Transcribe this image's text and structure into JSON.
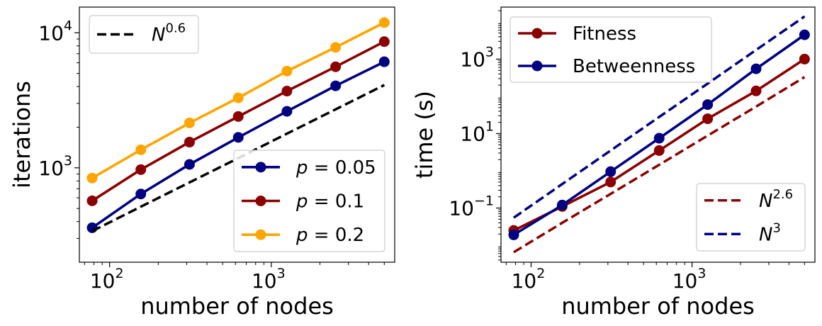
{
  "chart_data": [
    {
      "type": "line",
      "xscale": "log",
      "yscale": "log",
      "xlabel": "number of nodes",
      "ylabel": "iterations",
      "xlim": [
        65,
        5800
      ],
      "ylim": [
        200,
        15500
      ],
      "x_ticks": [
        {
          "value": 100,
          "base": "10",
          "exp": "2"
        },
        {
          "value": 1000,
          "base": "10",
          "exp": "3"
        }
      ],
      "y_ticks": [
        {
          "value": 1000,
          "base": "10",
          "exp": "3"
        },
        {
          "value": 10000,
          "base": "10",
          "exp": "4"
        }
      ],
      "x": [
        78,
        156,
        312,
        625,
        1250,
        2500,
        5000
      ],
      "series": [
        {
          "name": "p = 0.05",
          "label_var": "p",
          "label_val": " = 0.05",
          "color": "#000080",
          "style": "solid",
          "marker": true,
          "values": [
            360,
            640,
            1060,
            1680,
            2620,
            4050,
            6100
          ]
        },
        {
          "name": "p = 0.1",
          "label_var": "p",
          "label_val": " = 0.1",
          "color": "#8b0000",
          "style": "solid",
          "marker": true,
          "values": [
            570,
            970,
            1550,
            2400,
            3700,
            5600,
            8600
          ]
        },
        {
          "name": "p = 0.2",
          "label_var": "p",
          "label_val": " = 0.2",
          "color": "#ffa500",
          "style": "solid",
          "marker": true,
          "values": [
            840,
            1360,
            2150,
            3300,
            5200,
            7800,
            11900
          ]
        },
        {
          "name": "N^0.6",
          "label_var": "N",
          "label_sup": "0.6",
          "color": "#000000",
          "style": "dashed",
          "marker": false,
          "values": [
            340,
            515,
            780,
            1180,
            1790,
            2710,
            4100
          ]
        }
      ],
      "legends": [
        {
          "position": "top-left",
          "entries": [
            3
          ]
        },
        {
          "position": "bottom-right",
          "entries": [
            0,
            1,
            2
          ]
        }
      ]
    },
    {
      "type": "line",
      "xscale": "log",
      "yscale": "log",
      "xlabel": "number of nodes",
      "ylabel": "time (s)",
      "xlim": [
        65,
        5800
      ],
      "ylim": [
        0.0035,
        25000
      ],
      "x_ticks": [
        {
          "value": 100,
          "base": "10",
          "exp": "2"
        },
        {
          "value": 1000,
          "base": "10",
          "exp": "3"
        }
      ],
      "y_ticks": [
        {
          "value": 0.1,
          "base": "10",
          "exp": "−1"
        },
        {
          "value": 10,
          "base": "10",
          "exp": "1"
        },
        {
          "value": 1000,
          "base": "10",
          "exp": "3"
        }
      ],
      "x": [
        78,
        156,
        312,
        625,
        1250,
        2500,
        5000
      ],
      "series": [
        {
          "name": "Fitness",
          "label_text": "Fitness",
          "color": "#8b0000",
          "style": "solid",
          "marker": true,
          "values": [
            0.025,
            0.11,
            0.5,
            3.5,
            25,
            140,
            1000
          ]
        },
        {
          "name": "Betweenness",
          "label_text": "Betweenness",
          "color": "#000080",
          "style": "solid",
          "marker": true,
          "values": [
            0.019,
            0.12,
            0.95,
            7.5,
            60,
            550,
            4500
          ]
        },
        {
          "name": "N^2.6",
          "label_var": "N",
          "label_sup": "2.6",
          "color": "#8b0000",
          "style": "dashed",
          "marker": false,
          "values": [
            0.0065,
            0.04,
            0.24,
            1.45,
            8.8,
            53,
            330
          ]
        },
        {
          "name": "N^3",
          "label_var": "N",
          "label_sup": "3",
          "color": "#000080",
          "style": "dashed",
          "marker": false,
          "values": [
            0.055,
            0.44,
            3.5,
            28,
            220,
            1760,
            14000
          ]
        }
      ],
      "legends": [
        {
          "position": "top-left",
          "entries": [
            0,
            1
          ]
        },
        {
          "position": "bottom-right",
          "entries": [
            2,
            3
          ]
        }
      ]
    }
  ]
}
